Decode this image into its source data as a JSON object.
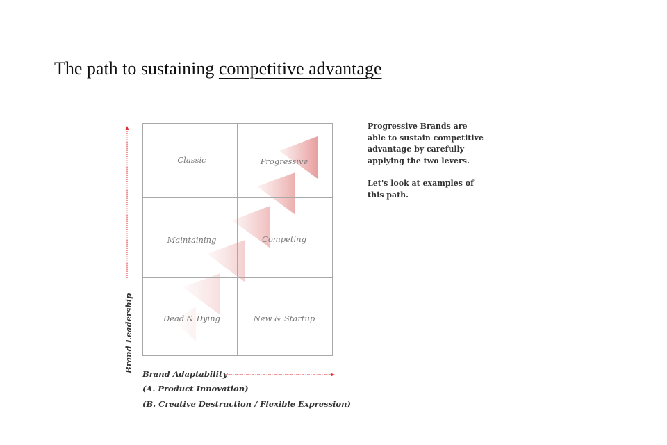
{
  "title": {
    "plain": "The path to sustaining ",
    "underlined": "competitive advantage"
  },
  "matrix": {
    "cells": {
      "top_left": "Classic",
      "top_right": "Progressive",
      "middle_left": "Maintaining",
      "middle_right": "Competing",
      "bottom_left": "Dead & Dying",
      "bottom_right": "New & Startup"
    },
    "y_axis_label": "Brand Leadership",
    "x_axis_label": "Brand Adaptability",
    "x_axis_sublabels": [
      "(A. Product Innovation)",
      "(B. Creative Destruction / Flexible Expression)"
    ],
    "arrow_color": "#e03030",
    "triangle_color": "#e89a9a"
  },
  "side_text": {
    "p1": "Progressive Brands are able to sustain competitive advantage by carefully applying the two levers.",
    "p2": "Let's look at examples of this path."
  }
}
